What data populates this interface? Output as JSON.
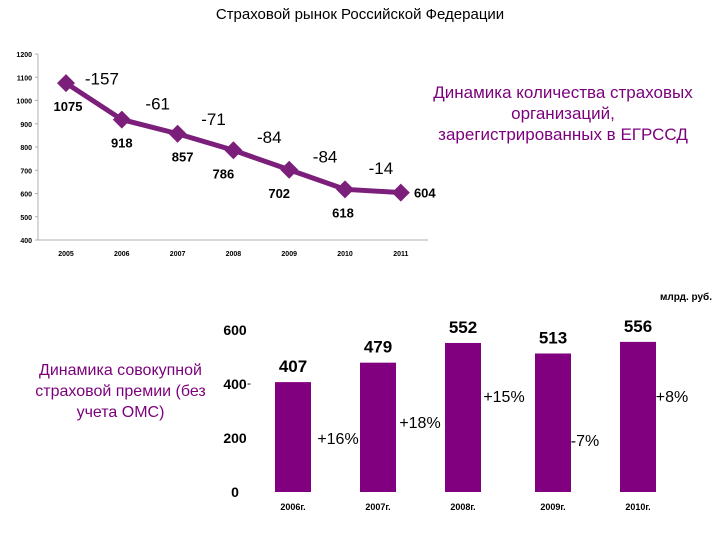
{
  "title": "Страховой рынок Российской Федерации",
  "line_note": "Динамика количества страховых организаций, зарегистрированных в ЕГРССД",
  "bar_note": "Динамика совокупной страховой премии (без учета ОМС)",
  "unit_label": "млрд. руб.",
  "colors": {
    "accent": "#7b1f7b",
    "bar": "#800080",
    "note": "#7b007b"
  },
  "chart_data": [
    {
      "type": "line",
      "title": "Динамика количества страховых организаций, зарегистрированных в ЕГРССД",
      "categories": [
        "2005",
        "2006",
        "2007",
        "2008",
        "2009",
        "2010",
        "2011"
      ],
      "values": [
        1075,
        918,
        857,
        786,
        702,
        618,
        604
      ],
      "changes": [
        "-157",
        "-61",
        "-71",
        "-84",
        "-84",
        "-14"
      ],
      "yticks": [
        "400",
        "500",
        "600",
        "700",
        "800",
        "900",
        "1000",
        "1100",
        "1200"
      ],
      "ylim": [
        400,
        1200
      ]
    },
    {
      "type": "bar",
      "title": "Динамика совокупной страховой премии (без учета ОМС)",
      "ylabel": "млрд. руб.",
      "categories": [
        "2006г.",
        "2007г.",
        "2008г.",
        "2009г.",
        "2010г."
      ],
      "values": [
        407,
        479,
        552,
        513,
        556
      ],
      "changes": [
        "+16%",
        "+18%",
        "+15%",
        "-7%",
        "+8%"
      ],
      "yticks": [
        "0",
        "200",
        "400",
        "600"
      ],
      "ylim": [
        0,
        600
      ]
    }
  ]
}
